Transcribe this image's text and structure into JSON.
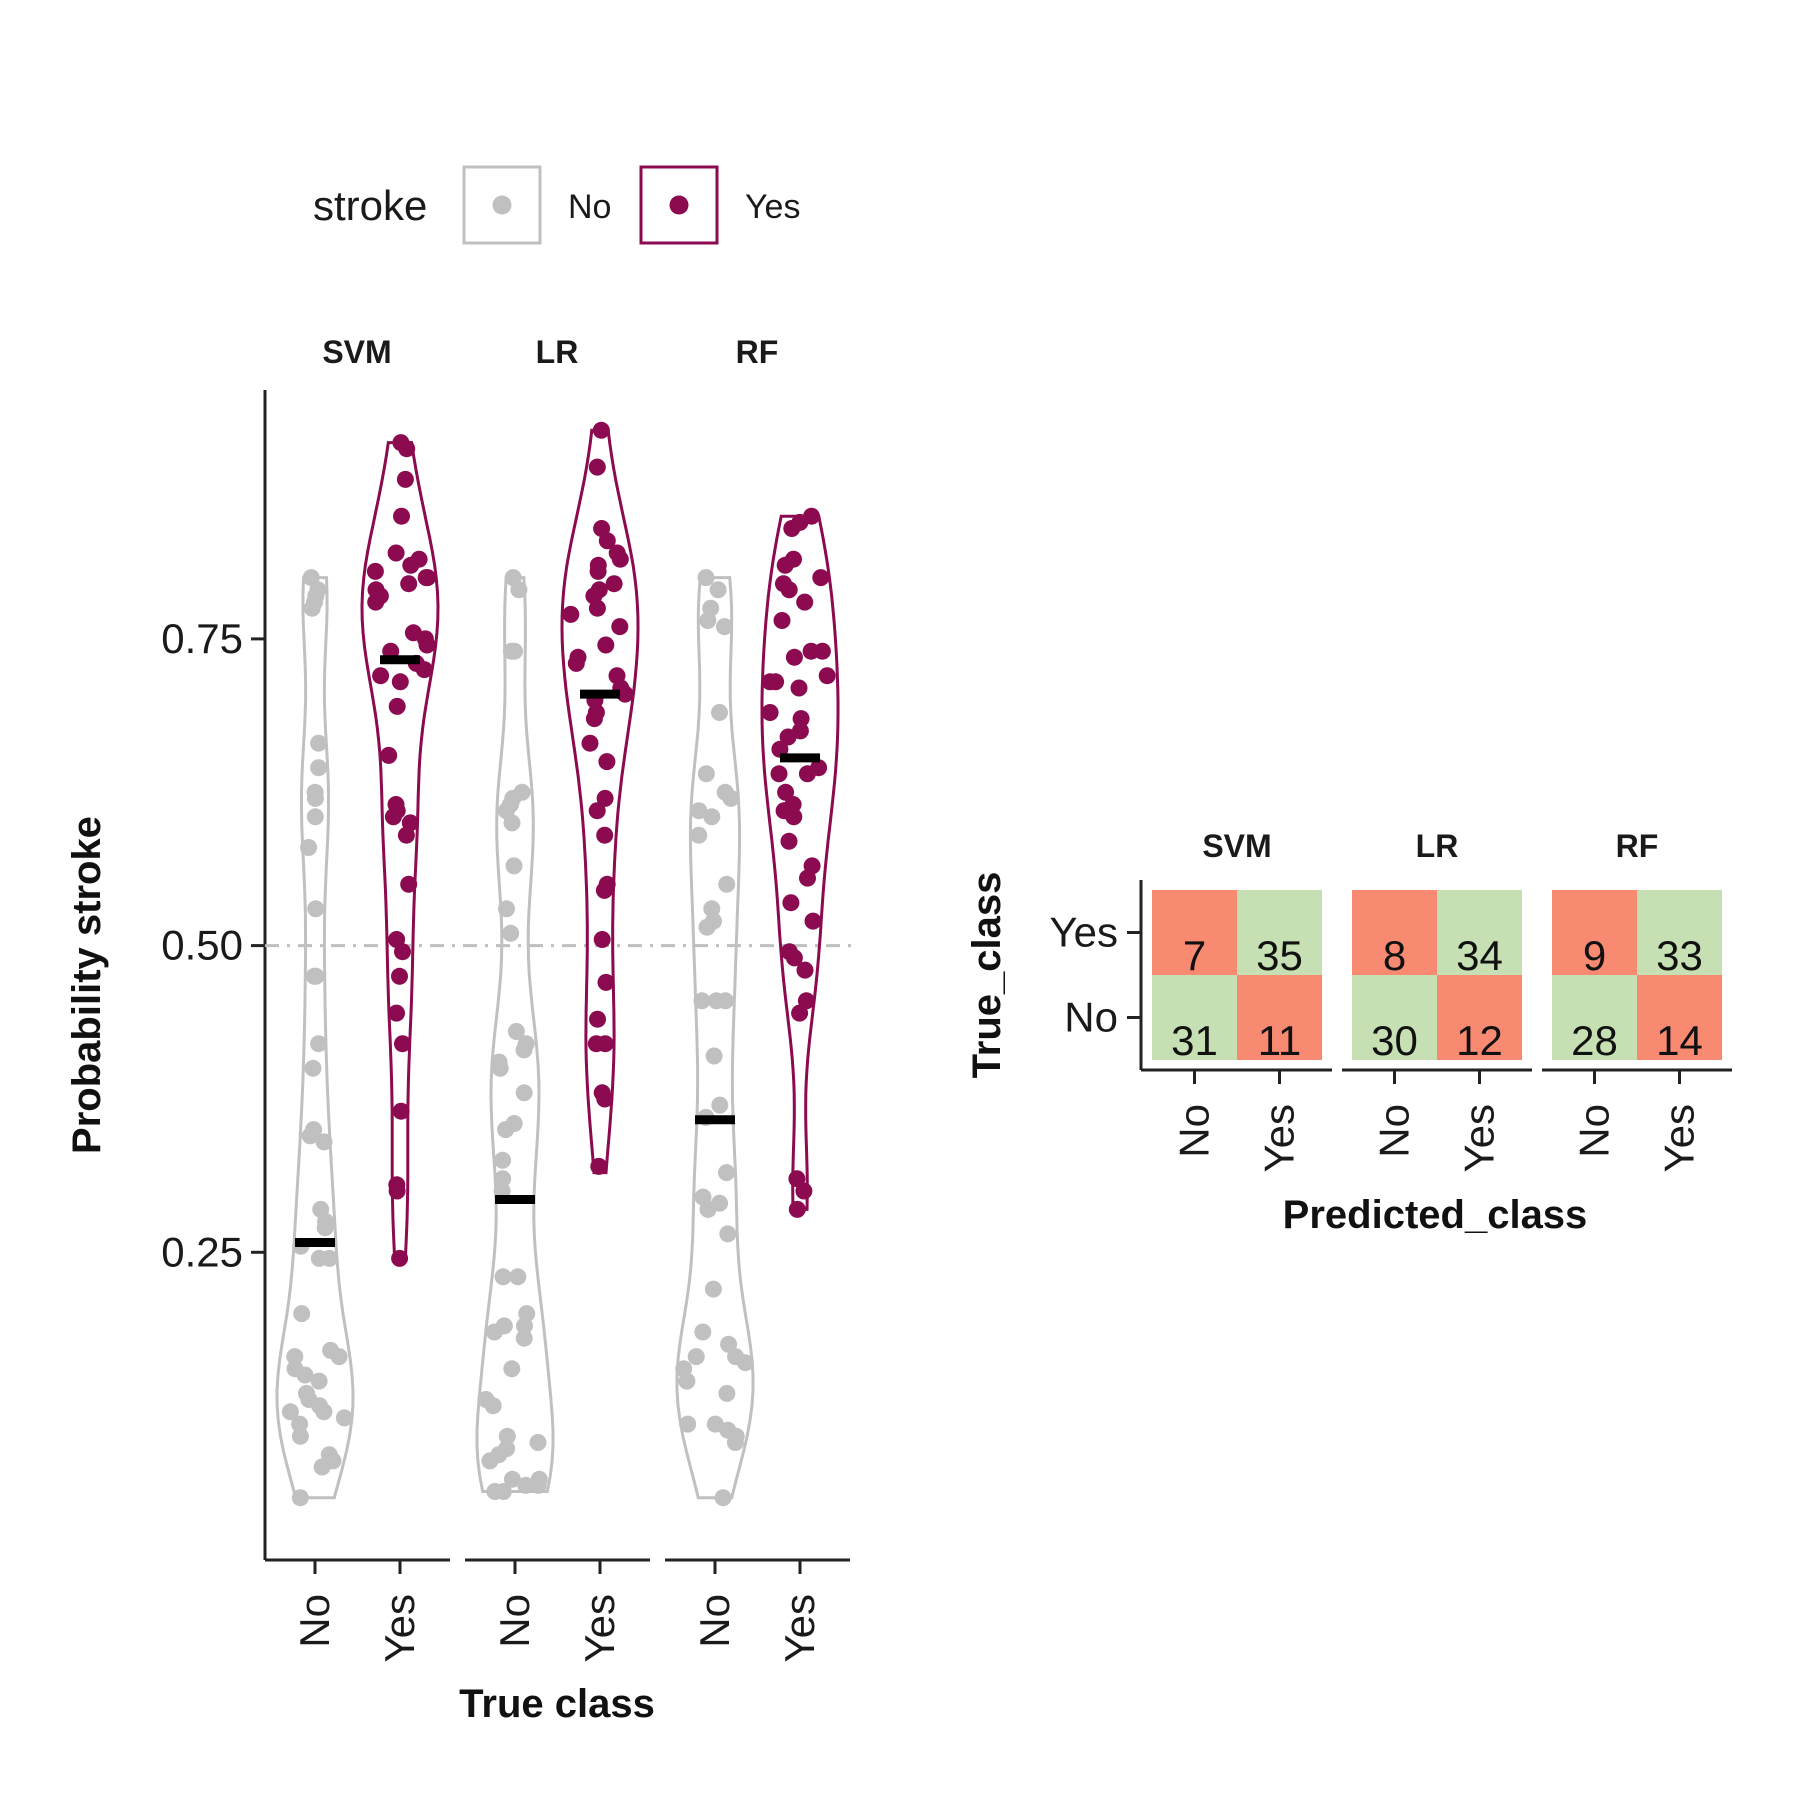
{
  "colors": {
    "No": "#c0c0c0",
    "Yes": "#8b0a50",
    "threshold": "#bfbfbf",
    "median": "#000000",
    "correct": "#c6e0b4",
    "incorrect": "#f88a72"
  },
  "legend": {
    "title": "stroke",
    "items": [
      {
        "label": "No",
        "key": "No"
      },
      {
        "label": "Yes",
        "key": "Yes"
      }
    ]
  },
  "chart_data": [
    {
      "type": "violin",
      "title": "",
      "xlabel": "True class",
      "ylabel": "Probability stroke",
      "y_ticks": [
        "0.25",
        "0.50",
        "0.75"
      ],
      "ylim": [
        0,
        0.97
      ],
      "threshold": 0.5,
      "threshold_style": "dashed",
      "categories": [
        "No",
        "Yes"
      ],
      "facets": [
        {
          "name": "SVM",
          "groups": [
            {
              "class": "No",
              "median": 0.258,
              "min": 0.05,
              "max": 0.8,
              "points": [
                0.8,
                0.79,
                0.785,
                0.78,
                0.775,
                0.665,
                0.645,
                0.625,
                0.62,
                0.605,
                0.58,
                0.53,
                0.475,
                0.475,
                0.42,
                0.4,
                0.35,
                0.345,
                0.34,
                0.285,
                0.275,
                0.27,
                0.255,
                0.245,
                0.245,
                0.2,
                0.17,
                0.165,
                0.165,
                0.155,
                0.15,
                0.145,
                0.135,
                0.13,
                0.125,
                0.12,
                0.12,
                0.115,
                0.11,
                0.1,
                0.085,
                0.08,
                0.075,
                0.05
              ]
            },
            {
              "class": "Yes",
              "median": 0.733,
              "min": 0.245,
              "max": 0.91,
              "points": [
                0.91,
                0.905,
                0.88,
                0.85,
                0.82,
                0.815,
                0.81,
                0.805,
                0.8,
                0.8,
                0.795,
                0.79,
                0.785,
                0.78,
                0.755,
                0.75,
                0.745,
                0.74,
                0.73,
                0.725,
                0.72,
                0.715,
                0.695,
                0.655,
                0.615,
                0.61,
                0.605,
                0.6,
                0.59,
                0.55,
                0.505,
                0.495,
                0.475,
                0.445,
                0.42,
                0.365,
                0.305,
                0.3,
                0.245
              ]
            }
          ]
        },
        {
          "name": "LR",
          "groups": [
            {
              "class": "No",
              "median": 0.293,
              "min": 0.055,
              "max": 0.8,
              "points": [
                0.8,
                0.79,
                0.74,
                0.74,
                0.625,
                0.62,
                0.615,
                0.61,
                0.6,
                0.565,
                0.53,
                0.51,
                0.43,
                0.42,
                0.415,
                0.405,
                0.4,
                0.38,
                0.355,
                0.35,
                0.325,
                0.31,
                0.3,
                0.23,
                0.23,
                0.2,
                0.19,
                0.19,
                0.185,
                0.18,
                0.155,
                0.13,
                0.125,
                0.1,
                0.095,
                0.09,
                0.085,
                0.08,
                0.065,
                0.065,
                0.06,
                0.06,
                0.055,
                0.055
              ]
            },
            {
              "class": "Yes",
              "median": 0.705,
              "min": 0.315,
              "max": 0.92,
              "points": [
                0.92,
                0.89,
                0.84,
                0.83,
                0.82,
                0.815,
                0.81,
                0.805,
                0.795,
                0.79,
                0.785,
                0.775,
                0.77,
                0.76,
                0.745,
                0.735,
                0.73,
                0.72,
                0.71,
                0.705,
                0.7,
                0.69,
                0.685,
                0.665,
                0.65,
                0.62,
                0.61,
                0.59,
                0.55,
                0.545,
                0.505,
                0.47,
                0.44,
                0.42,
                0.42,
                0.38,
                0.375,
                0.32
              ]
            }
          ]
        },
        {
          "name": "RF",
          "groups": [
            {
              "class": "No",
              "median": 0.358,
              "min": 0.05,
              "max": 0.8,
              "points": [
                0.8,
                0.79,
                0.775,
                0.765,
                0.76,
                0.69,
                0.64,
                0.625,
                0.62,
                0.61,
                0.605,
                0.59,
                0.55,
                0.53,
                0.52,
                0.515,
                0.455,
                0.455,
                0.455,
                0.41,
                0.37,
                0.36,
                0.315,
                0.295,
                0.29,
                0.285,
                0.265,
                0.22,
                0.185,
                0.175,
                0.165,
                0.165,
                0.16,
                0.155,
                0.145,
                0.135,
                0.11,
                0.11,
                0.105,
                0.1,
                0.095,
                0.05
              ]
            },
            {
              "class": "Yes",
              "median": 0.653,
              "min": 0.285,
              "max": 0.85,
              "points": [
                0.85,
                0.845,
                0.84,
                0.815,
                0.81,
                0.8,
                0.795,
                0.79,
                0.78,
                0.765,
                0.74,
                0.74,
                0.735,
                0.72,
                0.715,
                0.715,
                0.71,
                0.69,
                0.685,
                0.675,
                0.67,
                0.66,
                0.645,
                0.64,
                0.64,
                0.625,
                0.615,
                0.61,
                0.605,
                0.585,
                0.565,
                0.555,
                0.535,
                0.52,
                0.495,
                0.49,
                0.48,
                0.455,
                0.445,
                0.31,
                0.3,
                0.285
              ]
            }
          ]
        }
      ]
    },
    {
      "type": "heatmap",
      "title": "",
      "xlabel": "Predicted_class",
      "ylabel": "True_class",
      "x_categories": [
        "No",
        "Yes"
      ],
      "y_categories": [
        "Yes",
        "No"
      ],
      "facets": [
        {
          "name": "SVM",
          "cells": [
            {
              "true": "Yes",
              "pred": "No",
              "value": 7
            },
            {
              "true": "Yes",
              "pred": "Yes",
              "value": 35
            },
            {
              "true": "No",
              "pred": "No",
              "value": 31
            },
            {
              "true": "No",
              "pred": "Yes",
              "value": 11
            }
          ]
        },
        {
          "name": "LR",
          "cells": [
            {
              "true": "Yes",
              "pred": "No",
              "value": 8
            },
            {
              "true": "Yes",
              "pred": "Yes",
              "value": 34
            },
            {
              "true": "No",
              "pred": "No",
              "value": 30
            },
            {
              "true": "No",
              "pred": "Yes",
              "value": 12
            }
          ]
        },
        {
          "name": "RF",
          "cells": [
            {
              "true": "Yes",
              "pred": "No",
              "value": 9
            },
            {
              "true": "Yes",
              "pred": "Yes",
              "value": 33
            },
            {
              "true": "No",
              "pred": "No",
              "value": 28
            },
            {
              "true": "No",
              "pred": "Yes",
              "value": 14
            }
          ]
        }
      ]
    }
  ]
}
